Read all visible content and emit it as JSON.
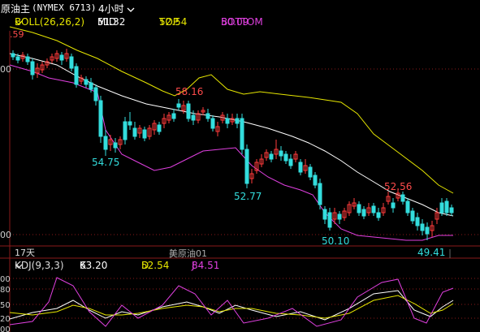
{
  "header": {
    "symbol": "原油主",
    "code": "(NYMEX 6713)",
    "period": "4小时",
    "period_icon": "chevron-down-icon"
  },
  "boll": {
    "label": "BOLL(26,26,2)",
    "mid_label": "MID",
    "mid": "51.32",
    "top_label": "TOP",
    "top": "52.54",
    "bottom_label": "BOTTOM",
    "bottom": "50.09"
  },
  "kdj": {
    "label": "KDJ(9,3,3)",
    "k_label": "K",
    "k": "63.20",
    "d_label": "D",
    "d": "52.54",
    "j_label": "J",
    "j": "84.51"
  },
  "axis": {
    "price_ticks": [
      "00",
      "00"
    ],
    "kdj_ticks": [
      "00",
      "80",
      "50",
      "20",
      "00"
    ],
    "corner_label": ".59"
  },
  "annotations": {
    "days": "17天",
    "watermark": "美原油01",
    "price_labels": [
      "58.16",
      "54.75",
      "52.77",
      "52.56",
      "50.10",
      "49.41"
    ]
  },
  "colors": {
    "background": "#000000",
    "up": "#ff3b3b",
    "down": "#33dddd",
    "mid_line": "#ffffff",
    "boll_band": "#e6e600",
    "bottom_band": "#e040e0",
    "grid": "#8a1a1a",
    "label_red": "#ff4b4b",
    "label_cyan": "#33dddd"
  }
}
